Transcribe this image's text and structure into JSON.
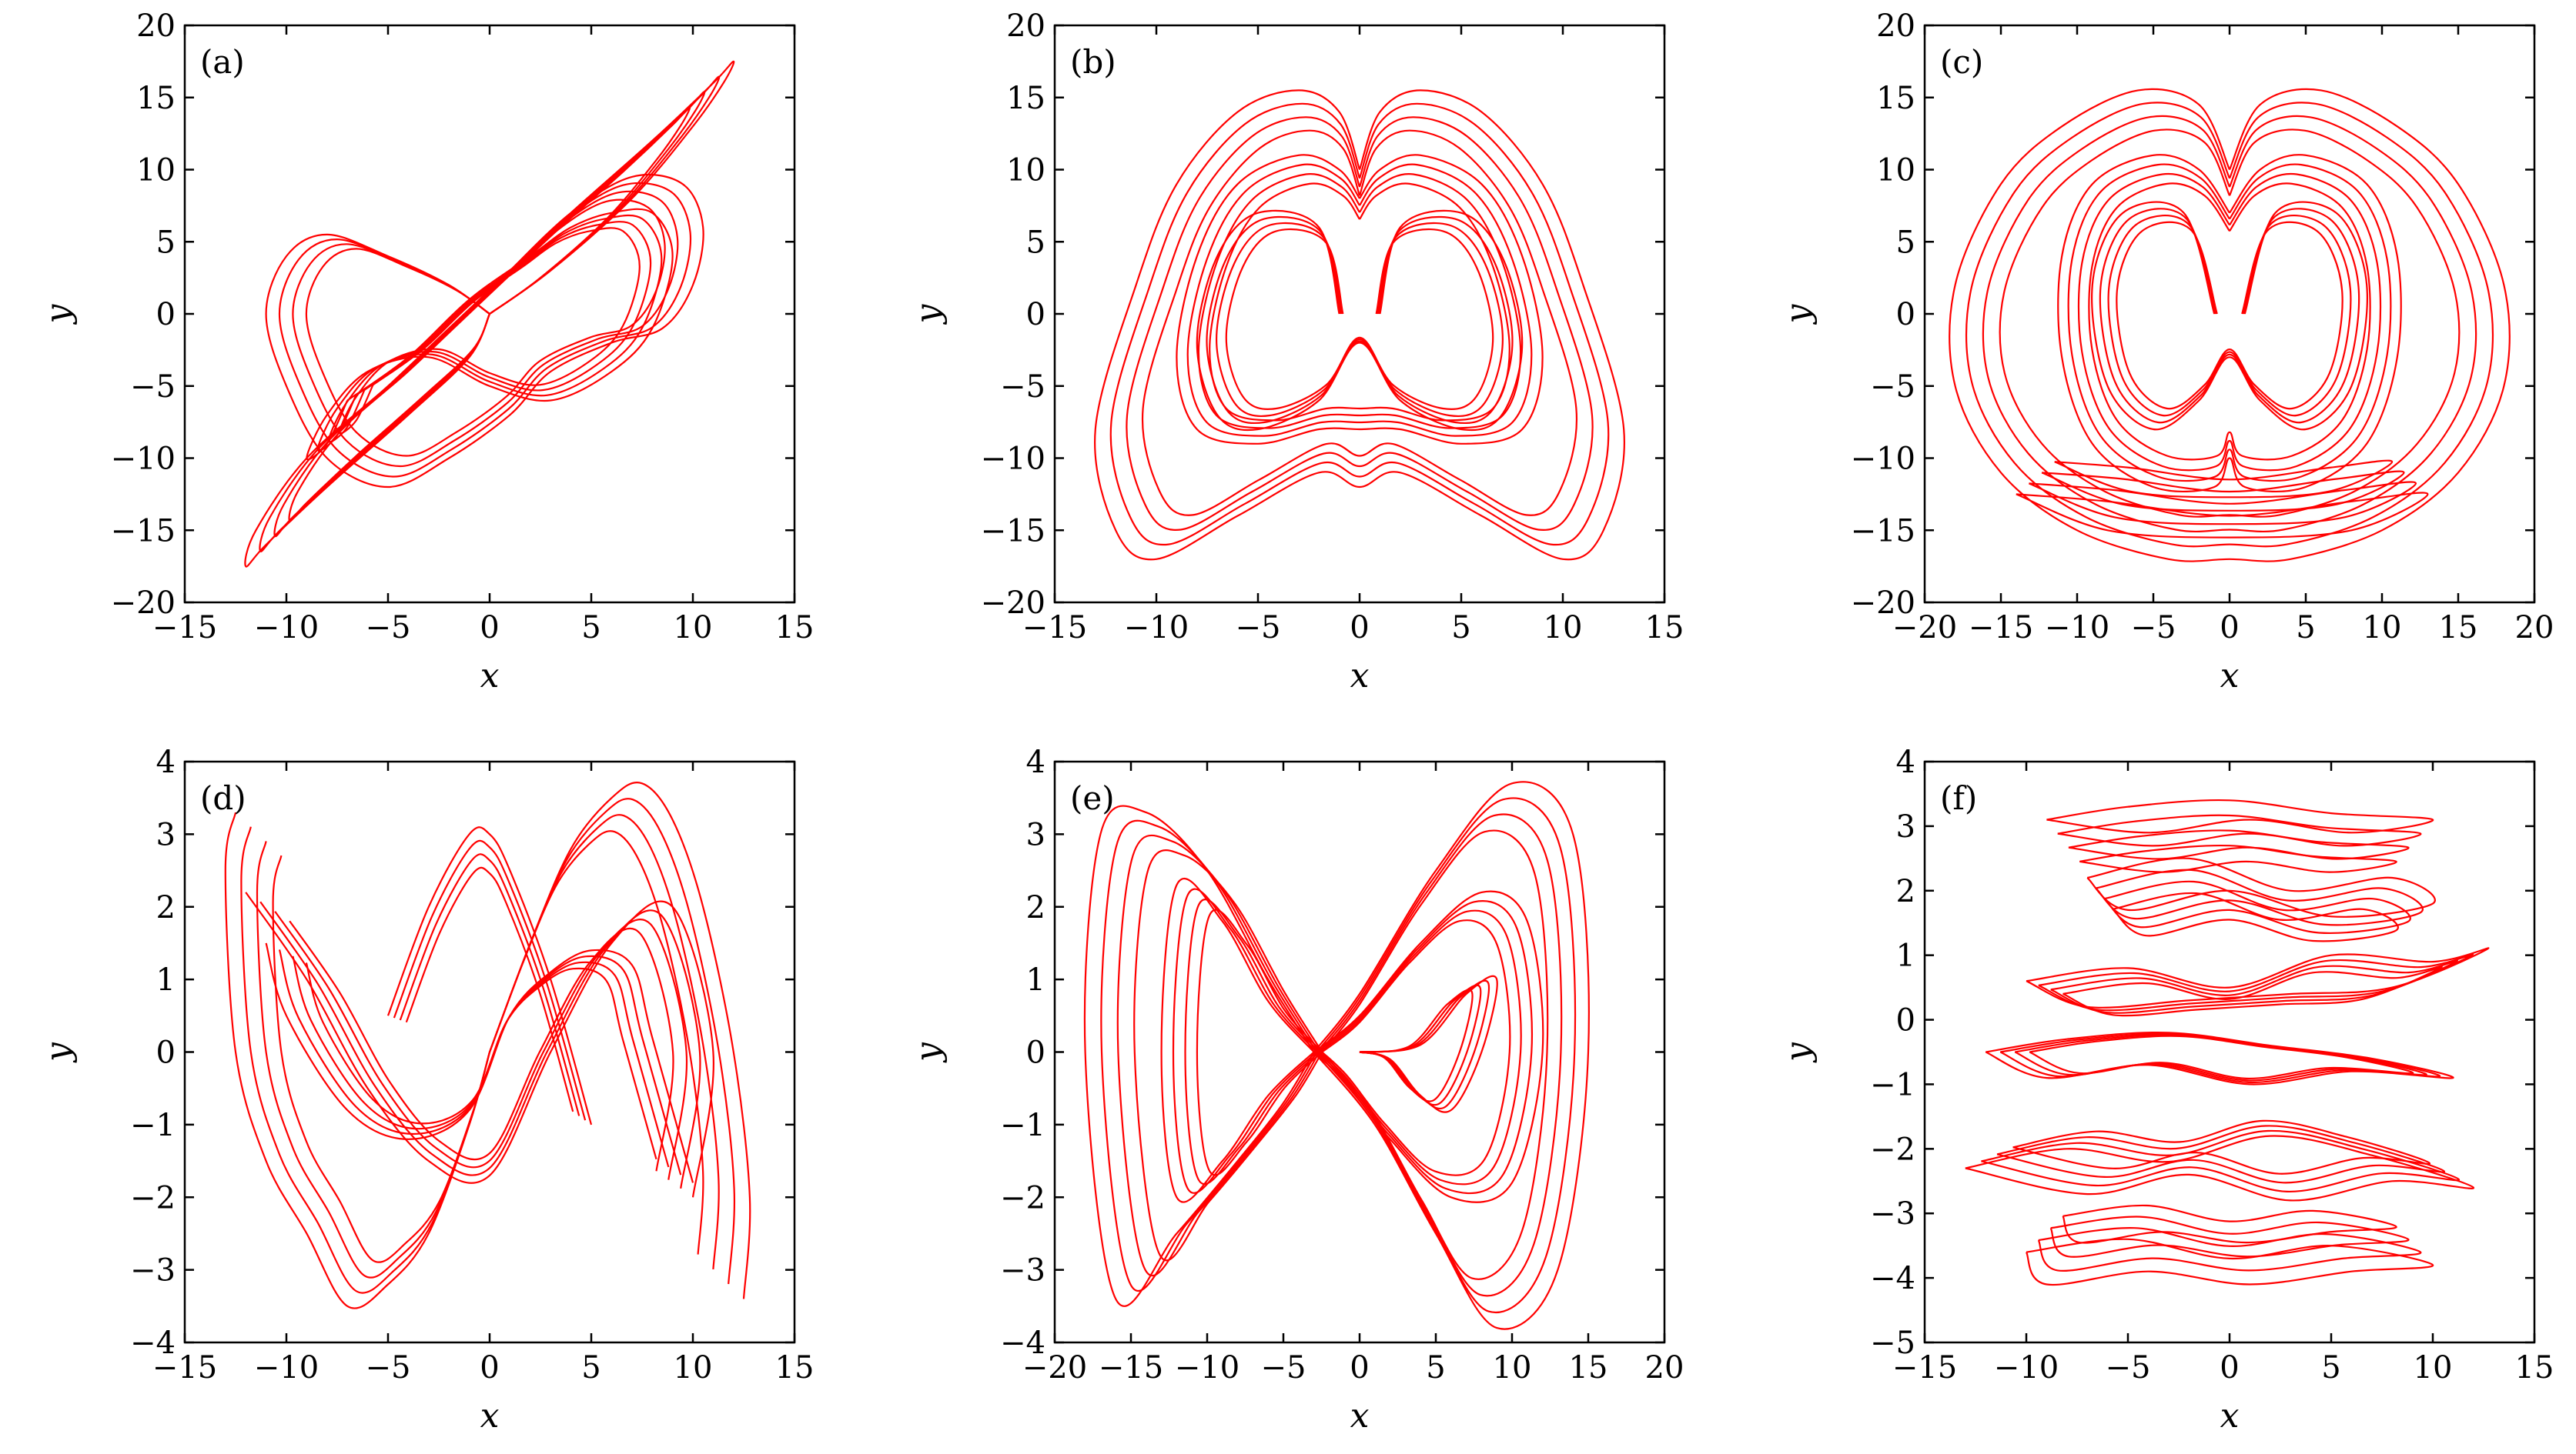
{
  "figure": {
    "accent_color": "#ff0000"
  },
  "chart_data": [
    {
      "type": "line",
      "panel_label": "(a)",
      "xlabel": "x",
      "ylabel": "y",
      "xlim": [
        -15,
        15
      ],
      "ylim": [
        -20,
        20
      ],
      "xticks": [
        -15,
        -10,
        -5,
        0,
        5,
        10,
        15
      ],
      "yticks": [
        -20,
        -15,
        -10,
        -5,
        0,
        5,
        10,
        15,
        20
      ],
      "xtick_labels": [
        "−15",
        "−10",
        "−5",
        "0",
        "5",
        "10",
        "15"
      ],
      "ytick_labels": [
        "−20",
        "−15",
        "−10",
        "−5",
        "0",
        "5",
        "10",
        "15",
        "20"
      ],
      "color": "#ff0000",
      "series": [
        {
          "x": [
            0,
            3,
            7,
            10,
            11.5,
            12,
            11,
            8,
            4,
            1,
            -2,
            -5,
            -9,
            -11.5,
            -12,
            -11,
            -8,
            -4,
            -1,
            0
          ],
          "y": [
            0,
            3,
            8,
            13,
            16,
            17.5,
            16,
            12,
            7,
            3,
            -1,
            -5,
            -10,
            -15,
            -17.5,
            -16,
            -12,
            -7,
            -3,
            0
          ]
        },
        {
          "x": [
            0,
            -2,
            -5,
            -8,
            -10,
            -11,
            -10,
            -8,
            -5,
            -2,
            1,
            3,
            6,
            8.5,
            10,
            10.5,
            9.5,
            7,
            4,
            1
          ],
          "y": [
            0,
            2,
            4,
            5.5,
            4,
            0,
            -5,
            -10,
            -12,
            -10,
            -7,
            -4,
            -2,
            -1,
            2,
            6,
            9,
            9.5,
            7,
            3
          ]
        },
        {
          "x": [
            -7,
            -4,
            -1,
            2,
            4,
            6,
            8,
            9,
            8,
            6,
            3,
            0,
            -3,
            -6,
            -8,
            -9,
            -8,
            -7
          ],
          "y": [
            -6,
            -3,
            1,
            4,
            6,
            7,
            7,
            4,
            -1,
            -4,
            -6,
            -5,
            -3,
            -4,
            -7,
            -10,
            -9,
            -6
          ]
        }
      ]
    },
    {
      "type": "line",
      "panel_label": "(b)",
      "xlabel": "x",
      "ylabel": "y",
      "xlim": [
        -15,
        15
      ],
      "ylim": [
        -20,
        20
      ],
      "xticks": [
        -15,
        -10,
        -5,
        0,
        5,
        10,
        15
      ],
      "yticks": [
        -20,
        -15,
        -10,
        -5,
        0,
        5,
        10,
        15,
        20
      ],
      "xtick_labels": [
        "−15",
        "−10",
        "−5",
        "0",
        "5",
        "10",
        "15"
      ],
      "ytick_labels": [
        "−20",
        "−15",
        "−10",
        "−5",
        "0",
        "5",
        "10",
        "15",
        "20"
      ],
      "color": "#ff0000",
      "series": [
        {
          "x": [
            0,
            -1,
            -3,
            -6,
            -9,
            -11,
            -13,
            -12,
            -10,
            -6,
            -2,
            0,
            2,
            6,
            10,
            12,
            13,
            11,
            9,
            6,
            3,
            1,
            0
          ],
          "y": [
            10,
            14,
            15.5,
            14,
            9,
            2,
            -8,
            -15,
            -17,
            -14,
            -11,
            -12,
            -11,
            -14,
            -17,
            -15,
            -8,
            2,
            9,
            14,
            15.5,
            14,
            10
          ]
        },
        {
          "x": [
            0,
            -1,
            -3,
            -6,
            -8,
            -9,
            -8,
            -5,
            -2,
            0,
            2,
            5,
            8,
            9,
            8,
            6,
            3,
            1,
            0
          ],
          "y": [
            8,
            10,
            11,
            9,
            4,
            -3,
            -8,
            -9,
            -8,
            -8,
            -8,
            -9,
            -8,
            -3,
            4,
            9,
            11,
            10,
            8
          ]
        },
        {
          "x": [
            -1,
            -2,
            -5,
            -7,
            -8,
            -7,
            -5,
            -2,
            0,
            2,
            5,
            7,
            8,
            7,
            5,
            2,
            1
          ],
          "y": [
            0,
            6,
            7,
            4,
            -2,
            -7,
            -8,
            -6,
            -2,
            -6,
            -8,
            -7,
            -2,
            4,
            7,
            6,
            0
          ]
        }
      ]
    },
    {
      "type": "line",
      "panel_label": "(c)",
      "xlabel": "x",
      "ylabel": "y",
      "xlim": [
        -20,
        20
      ],
      "ylim": [
        -20,
        20
      ],
      "xticks": [
        -20,
        -15,
        -10,
        -5,
        0,
        5,
        10,
        15,
        20
      ],
      "yticks": [
        -20,
        -15,
        -10,
        -5,
        0,
        5,
        10,
        15,
        20
      ],
      "xtick_labels": [
        "−20",
        "−15",
        "−10",
        "−5",
        "0",
        "5",
        "10",
        "15",
        "20"
      ],
      "ytick_labels": [
        "−20",
        "−15",
        "−10",
        "−5",
        "0",
        "5",
        "10",
        "15",
        "20"
      ],
      "color": "#ff0000",
      "series": [
        {
          "x": [
            0,
            -2,
            -6,
            -11,
            -15,
            -18,
            -18,
            -15,
            -10,
            -4,
            0,
            4,
            10,
            15,
            18,
            18,
            15,
            11,
            6,
            2,
            0
          ],
          "y": [
            10,
            14.5,
            15.5,
            13,
            9,
            2,
            -5,
            -11,
            -15,
            -17,
            -17,
            -17,
            -15,
            -11,
            -5,
            2,
            9,
            13,
            15.5,
            14.5,
            10
          ]
        },
        {
          "x": [
            0,
            -2,
            -5,
            -9,
            -11,
            -11,
            -9,
            -5,
            -1,
            0,
            1,
            5,
            9,
            11,
            11,
            9,
            5,
            2,
            0
          ],
          "y": [
            7,
            10,
            11,
            9,
            4,
            -3,
            -9,
            -12,
            -12,
            -10,
            -12,
            -12,
            -9,
            -3,
            4,
            9,
            11,
            10,
            7
          ]
        },
        {
          "x": [
            -1,
            -3,
            -7,
            -9,
            -8,
            -5,
            -2,
            0,
            2,
            5,
            8,
            9,
            7,
            3,
            1
          ],
          "y": [
            0,
            7,
            7,
            2,
            -5,
            -8,
            -6,
            -3,
            -6,
            -8,
            -5,
            2,
            7,
            7,
            0
          ]
        },
        {
          "x": [
            -14,
            -8,
            0,
            8,
            13,
            8,
            0,
            -8,
            -14
          ],
          "y": [
            -12.5,
            -13,
            -14,
            -13,
            -12.5,
            -15,
            -15.5,
            -15,
            -12.5
          ]
        }
      ]
    },
    {
      "type": "line",
      "panel_label": "(d)",
      "xlabel": "x",
      "ylabel": "y",
      "xlim": [
        -15,
        15
      ],
      "ylim": [
        -4,
        4
      ],
      "xticks": [
        -15,
        -10,
        -5,
        0,
        5,
        10,
        15
      ],
      "yticks": [
        -4,
        -3,
        -2,
        -1,
        0,
        1,
        2,
        3,
        4
      ],
      "xtick_labels": [
        "−15",
        "−10",
        "−5",
        "0",
        "5",
        "10",
        "15"
      ],
      "ytick_labels": [
        "−4",
        "−3",
        "−2",
        "−1",
        "0",
        "1",
        "2",
        "3",
        "4"
      ],
      "color": "#ff0000",
      "series": [
        {
          "x": [
            -12.5,
            -13,
            -12.5,
            -11,
            -9,
            -7,
            -5,
            -3,
            -1,
            0
          ],
          "y": [
            3.3,
            2.5,
            0,
            -1.5,
            -2.5,
            -3.5,
            -3.2,
            -2.5,
            -1,
            0
          ]
        },
        {
          "x": [
            0,
            2,
            4,
            6,
            7.5,
            9,
            10.5,
            12,
            12.8,
            12.5
          ],
          "y": [
            0,
            1.5,
            2.8,
            3.5,
            3.7,
            3.2,
            2,
            0,
            -2,
            -3.4
          ]
        },
        {
          "x": [
            -12,
            -9,
            -6,
            -3,
            0,
            3,
            6,
            9,
            11,
            10
          ],
          "y": [
            2.2,
            1,
            -0.5,
            -1.5,
            -1.7,
            0,
            1.5,
            2,
            0,
            -2
          ]
        },
        {
          "x": [
            -11,
            -10,
            -7,
            -4,
            -1,
            1,
            3,
            5,
            7,
            8,
            10
          ],
          "y": [
            1.5,
            0.5,
            -0.8,
            -1.2,
            -0.8,
            0.5,
            1.1,
            1.4,
            1.2,
            0.2,
            -1.8
          ]
        },
        {
          "x": [
            -5,
            -3,
            -1,
            0,
            1,
            3,
            5
          ],
          "y": [
            0.5,
            2,
            3,
            3,
            2.5,
            1,
            -1
          ]
        }
      ]
    },
    {
      "type": "line",
      "panel_label": "(e)",
      "xlabel": "x",
      "ylabel": "y",
      "xlim": [
        -20,
        20
      ],
      "ylim": [
        -4,
        4
      ],
      "xticks": [
        -20,
        -15,
        -10,
        -5,
        0,
        5,
        10,
        15,
        20
      ],
      "yticks": [
        -4,
        -3,
        -2,
        -1,
        0,
        1,
        2,
        3,
        4
      ],
      "xtick_labels": [
        "−20",
        "−15",
        "−10",
        "−5",
        "0",
        "5",
        "10",
        "15",
        "20"
      ],
      "ytick_labels": [
        "−4",
        "−3",
        "−2",
        "−1",
        "0",
        "1",
        "2",
        "3",
        "4"
      ],
      "color": "#ff0000",
      "series": [
        {
          "x": [
            -3,
            -6,
            -10,
            -14,
            -17,
            -18,
            -16,
            -12,
            -8,
            -5,
            -3
          ],
          "y": [
            0,
            1,
            2.5,
            3.3,
            3,
            0,
            -3.4,
            -2.5,
            -1.5,
            -0.7,
            0
          ]
        },
        {
          "x": [
            -3,
            0,
            5,
            10,
            14,
            15,
            13,
            9,
            5,
            1,
            -3
          ],
          "y": [
            0,
            0.8,
            2.5,
            3.7,
            3,
            0,
            -3,
            -3.8,
            -2.5,
            -1,
            0
          ]
        },
        {
          "x": [
            -3,
            0,
            4,
            8,
            11,
            12,
            10,
            6,
            2,
            -1,
            -3
          ],
          "y": [
            0,
            0.5,
            1.5,
            2.2,
            1.8,
            0,
            -1.8,
            -2,
            -1.2,
            -0.4,
            0
          ]
        },
        {
          "x": [
            -3,
            -6,
            -9,
            -12,
            -13,
            -12,
            -9,
            -6,
            -3
          ],
          "y": [
            0,
            0.7,
            1.8,
            2.3,
            0,
            -2,
            -1.5,
            -0.6,
            0
          ]
        },
        {
          "x": [
            0,
            4,
            7,
            9,
            8,
            6,
            4,
            2,
            0
          ],
          "y": [
            0,
            0.1,
            0.8,
            1,
            0,
            -0.8,
            -0.6,
            -0.1,
            0
          ]
        }
      ]
    },
    {
      "type": "line",
      "panel_label": "(f)",
      "xlabel": "x",
      "ylabel": "y",
      "xlim": [
        -15,
        15
      ],
      "ylim": [
        -5,
        4
      ],
      "xticks": [
        -15,
        -10,
        -5,
        0,
        5,
        10,
        15
      ],
      "yticks": [
        -5,
        -4,
        -3,
        -2,
        -1,
        0,
        1,
        2,
        3,
        4
      ],
      "xtick_labels": [
        "−15",
        "−10",
        "−5",
        "0",
        "5",
        "10",
        "15"
      ],
      "ytick_labels": [
        "−5",
        "−4",
        "−3",
        "−2",
        "−1",
        "0",
        "1",
        "2",
        "3",
        "4"
      ],
      "color": "#ff0000",
      "series": [
        {
          "x": [
            -9,
            -5,
            0,
            5,
            10,
            6,
            1,
            -4,
            -9
          ],
          "y": [
            3.1,
            3.3,
            3.4,
            3.2,
            3.1,
            2.9,
            3.1,
            2.9,
            3.1
          ]
        },
        {
          "x": [
            -7,
            -2,
            3,
            8,
            10,
            5,
            0,
            -5,
            -7
          ],
          "y": [
            2.2,
            2.5,
            2.0,
            2.2,
            1.8,
            1.6,
            2.0,
            1.7,
            2.2
          ]
        },
        {
          "x": [
            -10,
            -5,
            0,
            5,
            10,
            12.7,
            8,
            3,
            -2,
            -7,
            -10
          ],
          "y": [
            0.6,
            0.8,
            0.5,
            1.0,
            0.9,
            1.1,
            0.5,
            0.4,
            0.3,
            0.2,
            0.6
          ]
        },
        {
          "x": [
            -12,
            -8,
            -3,
            2,
            7,
            11,
            6,
            1,
            -4,
            -9,
            -12
          ],
          "y": [
            -0.5,
            -0.3,
            -0.2,
            -0.4,
            -0.6,
            -0.9,
            -0.8,
            -1.0,
            -0.7,
            -0.9,
            -0.5
          ]
        },
        {
          "x": [
            -13,
            -8,
            -3,
            2,
            7,
            12,
            8,
            3,
            -2,
            -7,
            -13
          ],
          "y": [
            -2.3,
            -2.0,
            -2.2,
            -1.8,
            -2.1,
            -2.6,
            -2.5,
            -2.8,
            -2.4,
            -2.7,
            -2.3
          ]
        },
        {
          "x": [
            -10,
            -5,
            0,
            5,
            10,
            6,
            1,
            -4,
            -9,
            -10
          ],
          "y": [
            -3.6,
            -3.4,
            -3.7,
            -3.5,
            -3.8,
            -3.9,
            -4.1,
            -3.9,
            -4.1,
            -3.6
          ]
        }
      ]
    }
  ]
}
